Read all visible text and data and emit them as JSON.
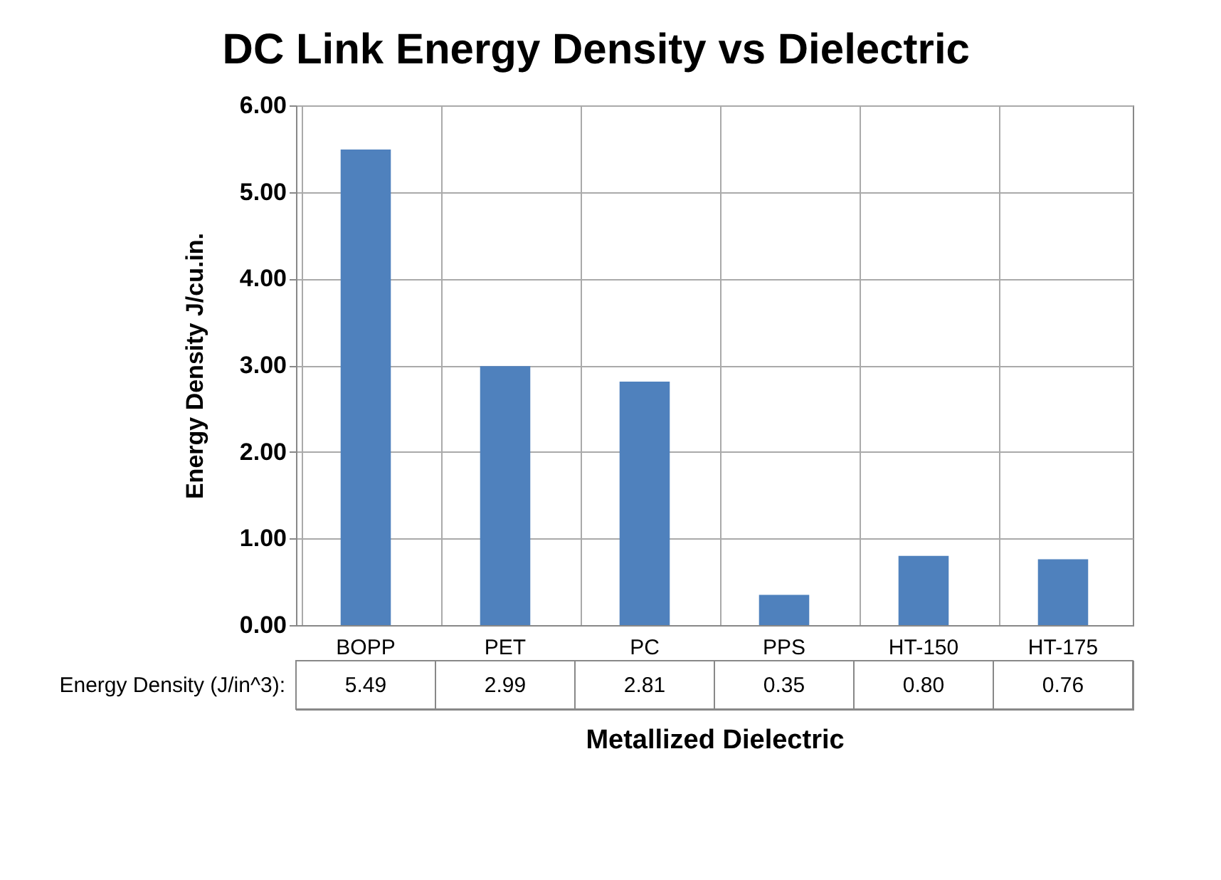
{
  "chart_data": {
    "type": "bar",
    "title": "DC Link Energy Density vs Dielectric",
    "xlabel": "Metallized Dielectric",
    "ylabel": "Energy Density J/cu.in.",
    "categories": [
      "BOPP",
      "PET",
      "PC",
      "PPS",
      "HT-150",
      "HT-175"
    ],
    "series": [
      {
        "name": "Energy Density (J/in^3):",
        "color": "#4f81bd",
        "values": [
          5.49,
          2.99,
          2.81,
          0.35,
          0.8,
          0.76
        ],
        "value_labels": [
          "5.49",
          "2.99",
          "2.81",
          "0.35",
          "0.80",
          "0.76"
        ]
      }
    ],
    "ylim": [
      0,
      6
    ],
    "yticks": [
      {
        "value": 0,
        "label": "0.00"
      },
      {
        "value": 1,
        "label": "1.00"
      },
      {
        "value": 2,
        "label": "2.00"
      },
      {
        "value": 3,
        "label": "3.00"
      },
      {
        "value": 4,
        "label": "4.00"
      },
      {
        "value": 5,
        "label": "5.00"
      },
      {
        "value": 6,
        "label": "6.00"
      }
    ],
    "grid": true
  }
}
